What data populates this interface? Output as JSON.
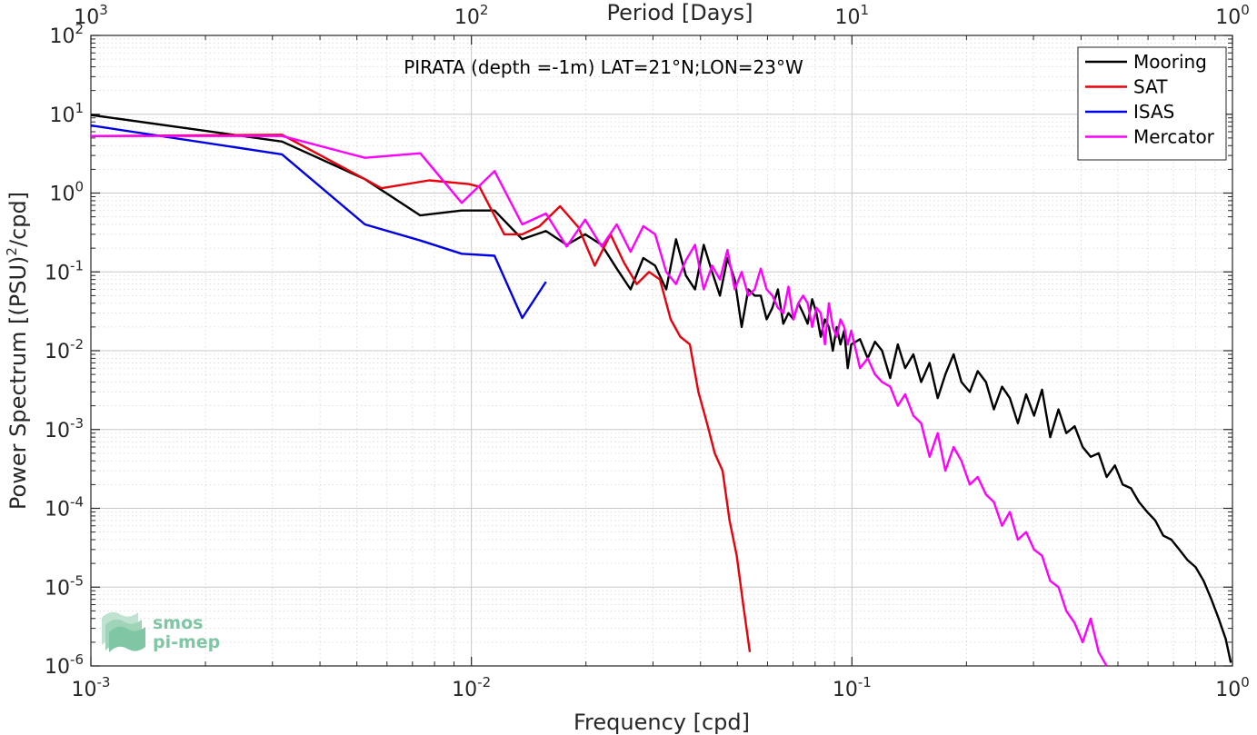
{
  "chart_data": {
    "type": "line",
    "title": "PIRATA (depth =-1m) LAT=21°N;LON=23°W",
    "xlabel": "Frequency [cpd]",
    "ylabel": "Power Spectrum [(PSU)",
    "ylabel_sup": "2",
    "ylabel_tail": "/cpd]",
    "top_xlabel": "Period [Days]",
    "x_scale": "log",
    "y_scale": "log",
    "xlim": [
      0.001,
      1
    ],
    "ylim": [
      1e-06,
      100
    ],
    "grid": true,
    "legend_position": "top-right",
    "x_ticks": [
      {
        "base": "10",
        "exp": "-3"
      },
      {
        "base": "10",
        "exp": "-2"
      },
      {
        "base": "10",
        "exp": "-1"
      },
      {
        "base": "10",
        "exp": "0"
      }
    ],
    "top_ticks": [
      {
        "base": "10",
        "exp": "3"
      },
      {
        "base": "10",
        "exp": "2"
      },
      {
        "base": "10",
        "exp": "1"
      },
      {
        "base": "10",
        "exp": "0"
      }
    ],
    "y_ticks": [
      {
        "base": "10",
        "exp": "-6"
      },
      {
        "base": "10",
        "exp": "-5"
      },
      {
        "base": "10",
        "exp": "-4"
      },
      {
        "base": "10",
        "exp": "-3"
      },
      {
        "base": "10",
        "exp": "-2"
      },
      {
        "base": "10",
        "exp": "-1"
      },
      {
        "base": "10",
        "exp": "0"
      },
      {
        "base": "10",
        "exp": "1"
      },
      {
        "base": "10",
        "exp": "2"
      }
    ],
    "series": [
      {
        "name": "Mooring",
        "color": "#000000",
        "x": [
          0.001,
          0.00318,
          0.00525,
          0.00734,
          0.00943,
          0.0115,
          0.0136,
          0.0157,
          0.0178,
          0.0199,
          0.022,
          0.0241,
          0.0262,
          0.0283,
          0.0304,
          0.0325,
          0.0345,
          0.0366,
          0.0387,
          0.0408,
          0.0429,
          0.045,
          0.0471,
          0.0492,
          0.0513,
          0.0534,
          0.0555,
          0.0576,
          0.0597,
          0.0618,
          0.0639,
          0.066,
          0.0681,
          0.0702,
          0.0723,
          0.0744,
          0.0765,
          0.0786,
          0.0807,
          0.0828,
          0.0849,
          0.087,
          0.0891,
          0.0912,
          0.0933,
          0.0954,
          0.0975,
          0.0996,
          0.105,
          0.11,
          0.115,
          0.12,
          0.126,
          0.132,
          0.138,
          0.145,
          0.152,
          0.16,
          0.168,
          0.176,
          0.185,
          0.194,
          0.204,
          0.214,
          0.225,
          0.236,
          0.248,
          0.26,
          0.273,
          0.287,
          0.301,
          0.316,
          0.332,
          0.349,
          0.366,
          0.385,
          0.404,
          0.424,
          0.445,
          0.467,
          0.491,
          0.515,
          0.541,
          0.568,
          0.597,
          0.627,
          0.658,
          0.691,
          0.725,
          0.762,
          0.8,
          0.84,
          0.88,
          0.92,
          0.96,
          0.99
        ],
        "values": [
          9.8,
          4.5,
          1.5,
          0.52,
          0.6,
          0.6,
          0.26,
          0.33,
          0.22,
          0.3,
          0.22,
          0.11,
          0.06,
          0.15,
          0.12,
          0.06,
          0.26,
          0.09,
          0.06,
          0.22,
          0.1,
          0.05,
          0.15,
          0.08,
          0.02,
          0.06,
          0.05,
          0.05,
          0.025,
          0.035,
          0.06,
          0.022,
          0.03,
          0.025,
          0.04,
          0.03,
          0.022,
          0.045,
          0.03,
          0.015,
          0.025,
          0.02,
          0.01,
          0.02,
          0.012,
          0.018,
          0.006,
          0.012,
          0.014,
          0.008,
          0.013,
          0.01,
          0.0045,
          0.012,
          0.006,
          0.009,
          0.004,
          0.007,
          0.0025,
          0.005,
          0.009,
          0.004,
          0.003,
          0.0055,
          0.004,
          0.0018,
          0.0035,
          0.0025,
          0.0012,
          0.0028,
          0.0015,
          0.0032,
          0.0008,
          0.0018,
          0.0009,
          0.0011,
          0.0006,
          0.00045,
          0.0005,
          0.00025,
          0.00035,
          0.0002,
          0.00018,
          0.00012,
          9e-05,
          7e-05,
          4.5e-05,
          4e-05,
          3e-05,
          2.2e-05,
          1.8e-05,
          1.2e-05,
          7e-06,
          4e-06,
          2.2e-06,
          1.1e-06
        ]
      },
      {
        "name": "SAT",
        "color": "#e8000b",
        "x": [
          0.001,
          0.00318,
          0.00525,
          0.0058,
          0.00775,
          0.00984,
          0.0105,
          0.0122,
          0.0136,
          0.0151,
          0.0171,
          0.0191,
          0.0211,
          0.0232,
          0.0252,
          0.0272,
          0.0293,
          0.0313,
          0.0334,
          0.0354,
          0.0375,
          0.0395,
          0.0416,
          0.0436,
          0.0457,
          0.0477,
          0.0498,
          0.0518,
          0.0539
        ],
        "values": [
          5.3,
          5.5,
          1.5,
          1.15,
          1.45,
          1.3,
          1.2,
          0.3,
          0.3,
          0.38,
          0.68,
          0.37,
          0.12,
          0.3,
          0.13,
          0.07,
          0.1,
          0.08,
          0.025,
          0.015,
          0.012,
          0.003,
          0.0012,
          0.0005,
          0.0003,
          7e-05,
          2.5e-05,
          6e-06,
          1.5e-06
        ]
      },
      {
        "name": "ISAS",
        "color": "#0000e6",
        "x": [
          0.001,
          0.00318,
          0.00525,
          0.00734,
          0.00943,
          0.0115,
          0.0136,
          0.0157
        ],
        "values": [
          7.2,
          3.1,
          0.4,
          0.25,
          0.17,
          0.16,
          0.026,
          0.075
        ]
      },
      {
        "name": "Mercator",
        "color": "#ff00ff",
        "x": [
          0.001,
          0.00318,
          0.00525,
          0.00734,
          0.00943,
          0.0115,
          0.0136,
          0.0157,
          0.0178,
          0.0199,
          0.022,
          0.0241,
          0.0262,
          0.0283,
          0.0304,
          0.0325,
          0.0345,
          0.0366,
          0.0387,
          0.0408,
          0.0429,
          0.045,
          0.0471,
          0.0492,
          0.0513,
          0.0534,
          0.0555,
          0.0576,
          0.0597,
          0.0618,
          0.0639,
          0.066,
          0.0681,
          0.0702,
          0.0723,
          0.0744,
          0.0765,
          0.0786,
          0.0807,
          0.0828,
          0.0849,
          0.087,
          0.0891,
          0.0912,
          0.0933,
          0.0954,
          0.0975,
          0.0996,
          0.105,
          0.11,
          0.115,
          0.12,
          0.126,
          0.132,
          0.138,
          0.145,
          0.152,
          0.16,
          0.168,
          0.176,
          0.185,
          0.194,
          0.204,
          0.214,
          0.225,
          0.236,
          0.248,
          0.26,
          0.273,
          0.287,
          0.301,
          0.316,
          0.332,
          0.349,
          0.366,
          0.385,
          0.404,
          0.424,
          0.445,
          0.467
        ],
        "values": [
          5.3,
          5.3,
          2.8,
          3.2,
          0.75,
          1.9,
          0.4,
          0.55,
          0.21,
          0.46,
          0.21,
          0.4,
          0.18,
          0.38,
          0.3,
          0.1,
          0.07,
          0.14,
          0.22,
          0.06,
          0.12,
          0.08,
          0.19,
          0.06,
          0.1,
          0.05,
          0.06,
          0.11,
          0.06,
          0.05,
          0.035,
          0.03,
          0.065,
          0.025,
          0.04,
          0.05,
          0.04,
          0.02,
          0.035,
          0.03,
          0.012,
          0.04,
          0.02,
          0.015,
          0.025,
          0.02,
          0.012,
          0.018,
          0.006,
          0.008,
          0.005,
          0.004,
          0.0035,
          0.002,
          0.0028,
          0.0015,
          0.0012,
          0.00045,
          0.0009,
          0.0003,
          0.0006,
          0.0004,
          0.0002,
          0.00025,
          0.00015,
          0.00012,
          6e-05,
          9e-05,
          4e-05,
          5e-05,
          3e-05,
          2.5e-05,
          1.2e-05,
          1e-05,
          5e-06,
          3.5e-06,
          2e-06,
          4e-06,
          1.5e-06,
          1e-06
        ]
      }
    ]
  },
  "watermark": {
    "line1": "smos",
    "line2": "pi-mep"
  }
}
